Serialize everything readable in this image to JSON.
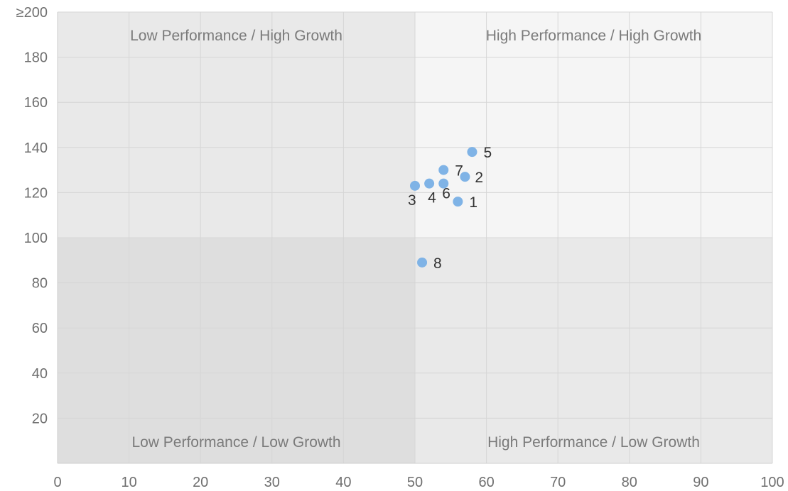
{
  "chart_data": {
    "type": "scatter",
    "title": "",
    "xlabel": "",
    "ylabel": "",
    "xlim": [
      0,
      100
    ],
    "ylim": [
      0,
      200
    ],
    "x_ticks": [
      0,
      10,
      20,
      30,
      40,
      50,
      60,
      70,
      80,
      90,
      100
    ],
    "y_ticks": [
      20,
      40,
      60,
      80,
      100,
      120,
      140,
      160,
      180,
      200
    ],
    "y_tick_labels": [
      "20",
      "40",
      "60",
      "80",
      "100",
      "120",
      "140",
      "160",
      "180",
      "≥200"
    ],
    "grid": true,
    "quadrant_split": {
      "x": 50,
      "y": 100
    },
    "quadrants": [
      {
        "label": "Low Performance / High Growth",
        "position": "top-left",
        "color": "#e9e9e9"
      },
      {
        "label": "High Performance / High Growth",
        "position": "top-right",
        "color": "#f5f5f5"
      },
      {
        "label": "Low Performance / Low Growth",
        "position": "bottom-left",
        "color": "#dedede"
      },
      {
        "label": "High Performance / Low Growth",
        "position": "bottom-right",
        "color": "#e9e9e9"
      }
    ],
    "point_color": "#7fb3e6",
    "points": [
      {
        "label": "1",
        "x": 56,
        "y": 116
      },
      {
        "label": "2",
        "x": 57,
        "y": 127
      },
      {
        "label": "3",
        "x": 50,
        "y": 123
      },
      {
        "label": "4",
        "x": 52,
        "y": 124
      },
      {
        "label": "5",
        "x": 58,
        "y": 138
      },
      {
        "label": "6",
        "x": 54,
        "y": 124
      },
      {
        "label": "7",
        "x": 54,
        "y": 130
      },
      {
        "label": "8",
        "x": 51,
        "y": 89
      }
    ]
  }
}
